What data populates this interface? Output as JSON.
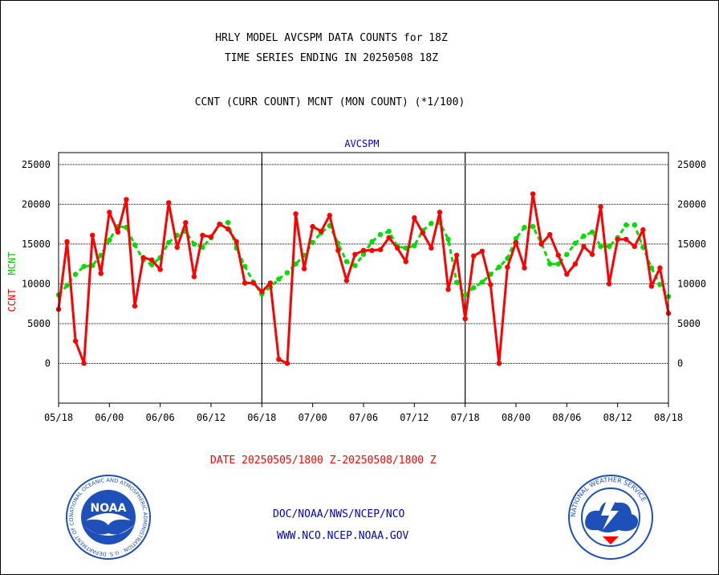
{
  "header": {
    "line1": "HRLY MODEL AVCSPM DATA COUNTS for 18Z",
    "line2": "TIME SERIES ENDING IN 20250508 18Z",
    "line3": "CCNT (CURR COUNT) MCNT (MON COUNT) (*1/100)"
  },
  "footer": {
    "date_range": "DATE 20250505/1800 Z-20250508/1800 Z",
    "org": "DOC/NOAA/NWS/NCEP/NCO",
    "url": "WWW.NCO.NCEP.NOAA.GOV"
  },
  "logos": {
    "noaa": {
      "label": "NOAA",
      "ring_text": "NATIONAL OCEANIC AND ATMOSPHERIC ADMINISTRATION · U.S. DEPARTMENT OF COMMERCE",
      "color": "#1f4fb8"
    },
    "nws": {
      "ring_text": "NATIONAL WEATHER SERVICE",
      "color": "#1f4fb8"
    }
  },
  "chart_data": {
    "type": "line",
    "title": "AVCSPM",
    "ylabel_left": "CCNT",
    "ylabel_right": "MCNT",
    "ylim": [
      -5000,
      26500
    ],
    "yticks": [
      0,
      5000,
      10000,
      15000,
      20000,
      25000
    ],
    "xlim": [
      0,
      72
    ],
    "x_tick_positions": [
      0,
      6,
      12,
      18,
      24,
      30,
      36,
      42,
      48,
      54,
      60,
      66,
      72
    ],
    "x_tick_labels": [
      "05/18",
      "06/00",
      "06/06",
      "06/12",
      "06/18",
      "07/00",
      "07/06",
      "07/12",
      "07/18",
      "08/00",
      "08/06",
      "08/12",
      "08/18"
    ],
    "day_separators": [
      24,
      48
    ],
    "grid": true,
    "series": [
      {
        "name": "CCNT",
        "color": "#ff0000",
        "style": "solid",
        "values": [
          6800,
          15300,
          2800,
          0,
          16100,
          11300,
          19000,
          16500,
          20600,
          7200,
          13300,
          13000,
          11800,
          20200,
          14600,
          17700,
          10900,
          16100,
          15900,
          17500,
          16900,
          15300,
          10100,
          10100,
          9000,
          10100,
          500,
          0,
          18800,
          11900,
          17200,
          16600,
          18600,
          14200,
          10400,
          13700,
          14200,
          14200,
          14300,
          15800,
          14500,
          12800,
          18300,
          16400,
          14500,
          19000,
          9300,
          13600,
          5600,
          13500,
          14100,
          9900,
          0,
          12100,
          15200,
          12000,
          21300,
          15000,
          16200,
          13600,
          11200,
          12500,
          14700,
          13700,
          19700,
          10000,
          15600,
          15600,
          14700,
          16800,
          9700,
          12000,
          6300
        ]
      },
      {
        "name": "MCNT",
        "color": "#00dd00",
        "style": "dashed",
        "values": [
          8600,
          9800,
          11200,
          12200,
          12300,
          13600,
          15500,
          17200,
          17100,
          14900,
          13000,
          12400,
          13300,
          15200,
          16100,
          16600,
          15000,
          14600,
          15800,
          17500,
          17700,
          14500,
          12200,
          10200,
          8700,
          9600,
          10600,
          11400,
          12500,
          13600,
          15200,
          16400,
          17300,
          15100,
          12800,
          12300,
          13700,
          15300,
          16200,
          16600,
          14700,
          14500,
          14800,
          16700,
          17600,
          17700,
          15600,
          10200,
          8600,
          9500,
          10200,
          11200,
          12100,
          13200,
          15700,
          17100,
          17200,
          15100,
          12500,
          12500,
          13700,
          15100,
          16000,
          16500,
          14700,
          14700,
          15800,
          17400,
          17400,
          14600,
          12000,
          9900,
          8400
        ]
      }
    ]
  }
}
